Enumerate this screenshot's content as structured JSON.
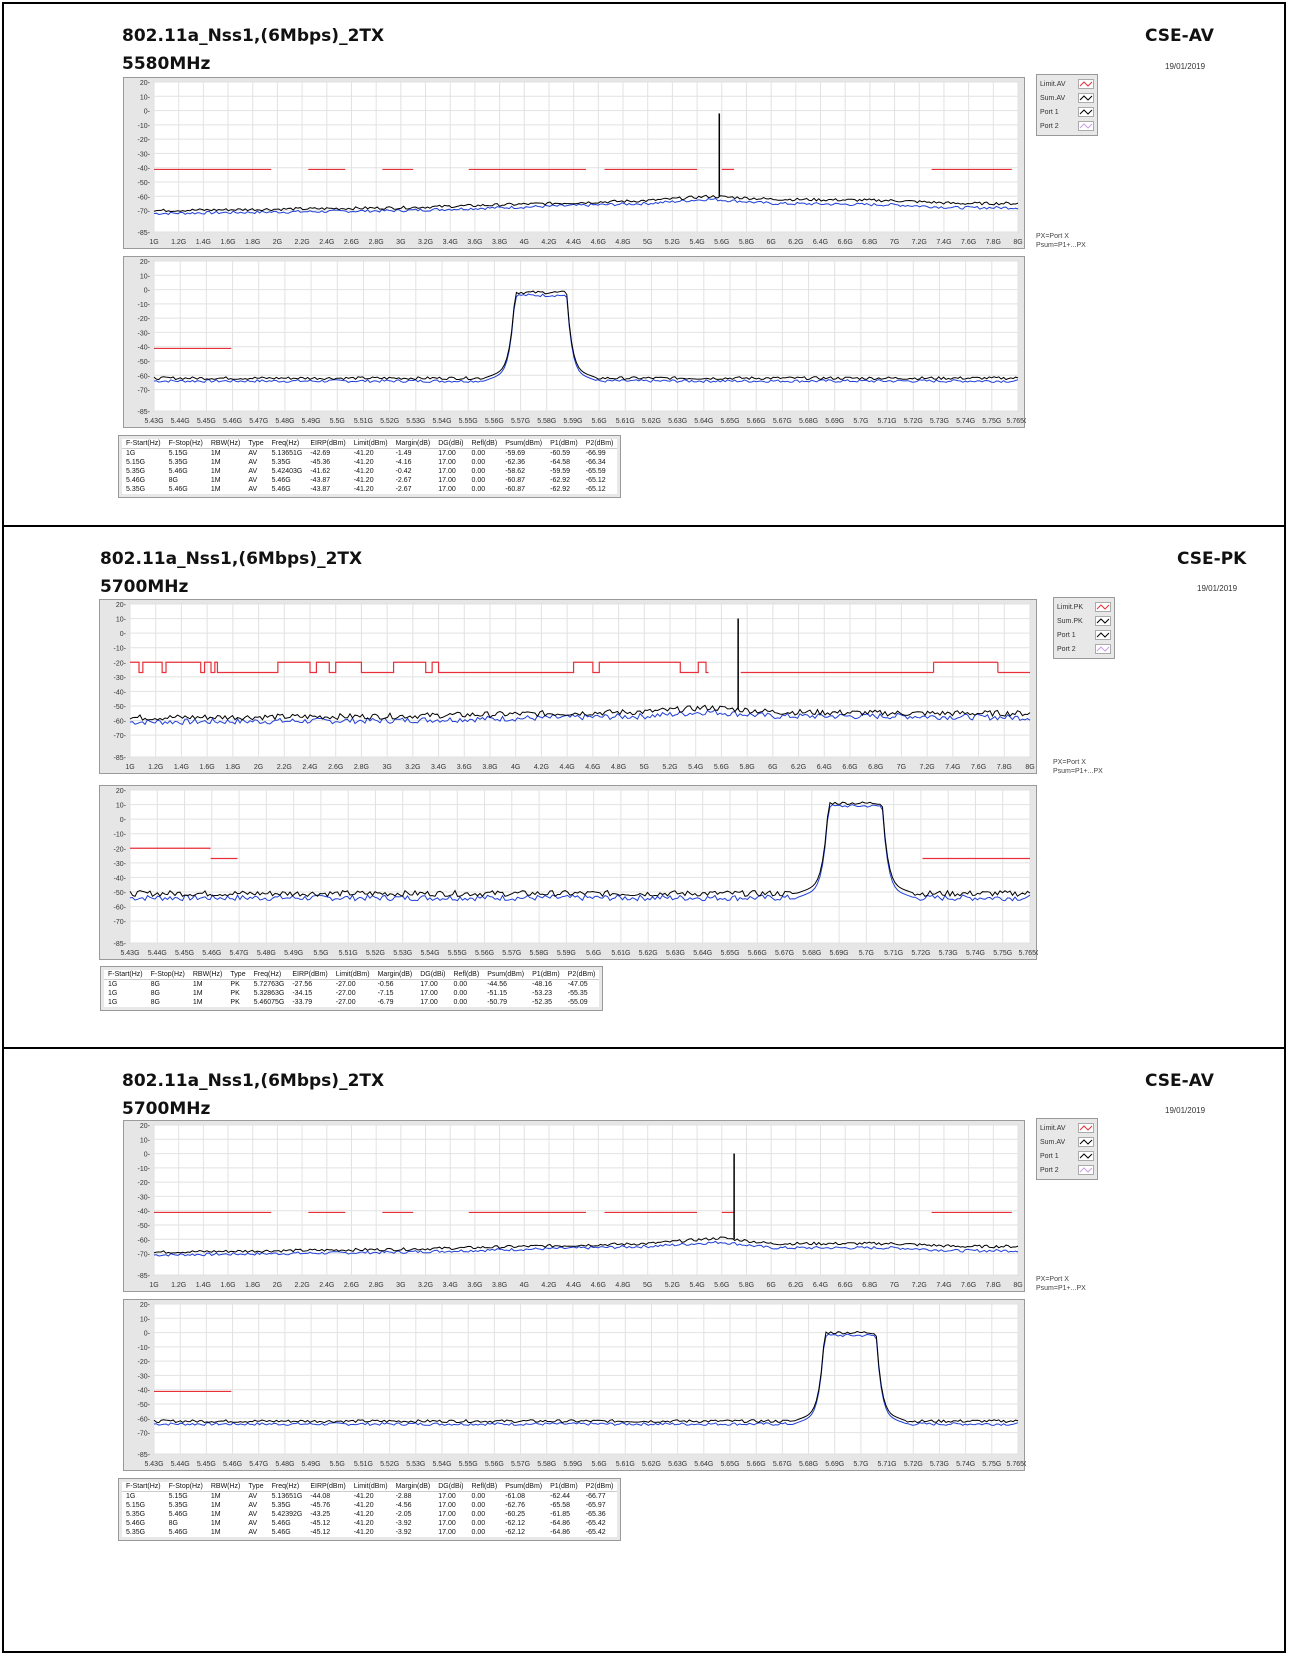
{
  "common": {
    "date": "19/01/2019",
    "px_note_line1": "PX=Port X",
    "px_note_line2": "Psum=P1+...PX",
    "x_ticks_full": [
      "1G",
      "1.2G",
      "1.4G",
      "1.6G",
      "1.8G",
      "2G",
      "2.2G",
      "2.4G",
      "2.6G",
      "2.8G",
      "3G",
      "3.2G",
      "3.4G",
      "3.6G",
      "3.8G",
      "4G",
      "4.2G",
      "4.4G",
      "4.6G",
      "4.8G",
      "5G",
      "5.2G",
      "5.4G",
      "5.6G",
      "5.8G",
      "6G",
      "6.2G",
      "6.4G",
      "6.6G",
      "6.8G",
      "7G",
      "7.2G",
      "7.4G",
      "7.6G",
      "7.8G",
      "8G"
    ],
    "x_ticks_zoom": [
      "5.43G",
      "5.44G",
      "5.45G",
      "5.46G",
      "5.47G",
      "5.48G",
      "5.49G",
      "5.5G",
      "5.51G",
      "5.52G",
      "5.53G",
      "5.54G",
      "5.55G",
      "5.56G",
      "5.57G",
      "5.58G",
      "5.59G",
      "5.6G",
      "5.61G",
      "5.62G",
      "5.63G",
      "5.64G",
      "5.65G",
      "5.66G",
      "5.67G",
      "5.68G",
      "5.69G",
      "5.7G",
      "5.71G",
      "5.72G",
      "5.73G",
      "5.74G",
      "5.75G",
      "5.765G"
    ],
    "y_ticks": [
      "20",
      "10",
      "0",
      "-10",
      "-20",
      "-30",
      "-40",
      "-50",
      "-60",
      "-70",
      "-85"
    ],
    "table_headers": [
      "F-Start(Hz)",
      "F-Stop(Hz)",
      "RBW(Hz)",
      "Type",
      "Freq(Hz)",
      "EIRP(dBm)",
      "Limit(dBm)",
      "Margin(dB)",
      "DG(dBi)",
      "Refl(dB)",
      "Psum(dBm)",
      "P1(dBm)",
      "P2(dBm)"
    ],
    "colors": {
      "limit": "#e8303a",
      "sum": "#000000",
      "port1": "#1f3fd6",
      "port2": "#c8a0e6"
    }
  },
  "sections": [
    {
      "title": "802.11a_Nss1,(6Mbps)_2TX",
      "freq": "5580MHz",
      "mode": "CSE-AV",
      "legend": [
        "Limit.AV",
        "Sum.AV",
        "Port 1",
        "Port 2"
      ],
      "rows": [
        [
          "1G",
          "5.15G",
          "1M",
          "AV",
          "5.13651G",
          "-42.69",
          "-41.20",
          "-1.49",
          "17.00",
          "0.00",
          "-59.69",
          "-60.59",
          "-66.99"
        ],
        [
          "5.15G",
          "5.35G",
          "1M",
          "AV",
          "5.35G",
          "-45.36",
          "-41.20",
          "-4.16",
          "17.00",
          "0.00",
          "-62.36",
          "-64.58",
          "-66.34"
        ],
        [
          "5.35G",
          "5.46G",
          "1M",
          "AV",
          "5.42403G",
          "-41.62",
          "-41.20",
          "-0.42",
          "17.00",
          "0.00",
          "-58.62",
          "-59.59",
          "-65.59"
        ],
        [
          "5.46G",
          "8G",
          "1M",
          "AV",
          "5.46G",
          "-43.87",
          "-41.20",
          "-2.67",
          "17.00",
          "0.00",
          "-60.87",
          "-62.92",
          "-65.12"
        ],
        [
          "5.35G",
          "5.46G",
          "1M",
          "AV",
          "5.46G",
          "-43.87",
          "-41.20",
          "-2.67",
          "17.00",
          "0.00",
          "-60.87",
          "-62.92",
          "-65.12"
        ]
      ]
    },
    {
      "title": "802.11a_Nss1,(6Mbps)_2TX",
      "freq": "5700MHz",
      "mode": "CSE-PK",
      "legend": [
        "Limit.PK",
        "Sum.PK",
        "Port 1",
        "Port 2"
      ],
      "rows": [
        [
          "1G",
          "8G",
          "1M",
          "PK",
          "5.72763G",
          "-27.56",
          "-27.00",
          "-0.56",
          "17.00",
          "0.00",
          "-44.56",
          "-48.16",
          "-47.05"
        ],
        [
          "1G",
          "8G",
          "1M",
          "PK",
          "5.32863G",
          "-34.15",
          "-27.00",
          "-7.15",
          "17.00",
          "0.00",
          "-51.15",
          "-53.23",
          "-55.35"
        ],
        [
          "1G",
          "8G",
          "1M",
          "PK",
          "5.46075G",
          "-33.79",
          "-27.00",
          "-6.79",
          "17.00",
          "0.00",
          "-50.79",
          "-52.35",
          "-55.09"
        ]
      ]
    },
    {
      "title": "802.11a_Nss1,(6Mbps)_2TX",
      "freq": "5700MHz",
      "mode": "CSE-AV",
      "legend": [
        "Limit.AV",
        "Sum.AV",
        "Port 1",
        "Port 2"
      ],
      "rows": [
        [
          "1G",
          "5.15G",
          "1M",
          "AV",
          "5.13651G",
          "-44.08",
          "-41.20",
          "-2.88",
          "17.00",
          "0.00",
          "-61.08",
          "-62.44",
          "-66.77"
        ],
        [
          "5.15G",
          "5.35G",
          "1M",
          "AV",
          "5.35G",
          "-45.76",
          "-41.20",
          "-4.56",
          "17.00",
          "0.00",
          "-62.76",
          "-65.58",
          "-65.97"
        ],
        [
          "5.35G",
          "5.46G",
          "1M",
          "AV",
          "5.42392G",
          "-43.25",
          "-41.20",
          "-2.05",
          "17.00",
          "0.00",
          "-60.25",
          "-61.85",
          "-65.36"
        ],
        [
          "5.46G",
          "8G",
          "1M",
          "AV",
          "5.46G",
          "-45.12",
          "-41.20",
          "-3.92",
          "17.00",
          "0.00",
          "-62.12",
          "-64.86",
          "-65.42"
        ],
        [
          "5.35G",
          "5.46G",
          "1M",
          "AV",
          "5.46G",
          "-45.12",
          "-41.20",
          "-3.92",
          "17.00",
          "0.00",
          "-62.12",
          "-64.86",
          "-65.42"
        ]
      ]
    }
  ],
  "chart_data": [
    {
      "type": "line",
      "panel": "sec1-full",
      "xlim": [
        1,
        8
      ],
      "ylim": [
        -85,
        20
      ],
      "xunit": "GHz",
      "series": [
        {
          "name": "Limit.AV",
          "segments": [
            [
              1.0,
              1.95,
              -41.2
            ],
            [
              2.25,
              2.55,
              -41.2
            ],
            [
              2.85,
              3.1,
              -41.2
            ],
            [
              3.55,
              4.5,
              -41.2
            ],
            [
              4.65,
              5.4,
              -41.2
            ],
            [
              5.6,
              5.7,
              -41.2
            ],
            [
              7.3,
              7.95,
              -41.2
            ]
          ]
        },
        {
          "name": "Sum.AV",
          "peak": {
            "x": 5.58,
            "y": -2
          },
          "floor": [
            [
              1,
              -70
            ],
            [
              3,
              -68
            ],
            [
              5,
              -63
            ],
            [
              5.5,
              -60
            ],
            [
              6,
              -62
            ],
            [
              7,
              -63
            ],
            [
              7.5,
              -65
            ],
            [
              8,
              -65
            ]
          ]
        },
        {
          "name": "Port 1",
          "floor": [
            [
              1,
              -72
            ],
            [
              3,
              -70
            ],
            [
              5,
              -65
            ],
            [
              5.5,
              -62
            ],
            [
              6,
              -65
            ],
            [
              7,
              -66
            ],
            [
              7.5,
              -68
            ],
            [
              8,
              -68
            ]
          ]
        }
      ]
    },
    {
      "type": "line",
      "panel": "sec1-zoom",
      "xlim": [
        5.43,
        5.765
      ],
      "ylim": [
        -85,
        20
      ],
      "xunit": "GHz",
      "series": [
        {
          "name": "Limit.AV",
          "segments": [
            [
              5.43,
              5.46,
              -41.2
            ]
          ]
        },
        {
          "name": "Sum.AV",
          "band": {
            "start": 5.57,
            "stop": 5.59,
            "level": -2
          },
          "floor": -62
        },
        {
          "name": "Port 1",
          "band": {
            "start": 5.57,
            "stop": 5.59,
            "level": -4
          },
          "floor": -64
        }
      ]
    },
    {
      "type": "line",
      "panel": "sec2-full",
      "xlim": [
        1,
        8
      ],
      "ylim": [
        -85,
        20
      ],
      "xunit": "GHz",
      "series": [
        {
          "name": "Limit.PK",
          "steps": [
            [
              1.0,
              -20
            ],
            [
              1.07,
              -27
            ],
            [
              1.1,
              -20
            ],
            [
              1.25,
              -27
            ],
            [
              1.28,
              -20
            ],
            [
              1.55,
              -27
            ],
            [
              1.58,
              -20
            ],
            [
              1.63,
              -27
            ],
            [
              1.66,
              -20
            ],
            [
              1.68,
              -27
            ],
            [
              2.15,
              -20
            ],
            [
              2.4,
              -27
            ],
            [
              2.45,
              -20
            ],
            [
              2.55,
              -27
            ],
            [
              2.6,
              -20
            ],
            [
              2.8,
              -27
            ],
            [
              3.05,
              -20
            ],
            [
              3.3,
              -27
            ],
            [
              3.35,
              -20
            ],
            [
              3.4,
              -27
            ],
            [
              4.45,
              -20
            ],
            [
              4.6,
              -27
            ],
            [
              4.65,
              -20
            ],
            [
              5.28,
              -27
            ],
            [
              5.42,
              -20
            ],
            [
              5.48,
              -27
            ]
          ],
          "right": [
            [
              5.75,
              7.25,
              -27
            ],
            [
              7.25,
              7.75,
              -20
            ],
            [
              7.75,
              8.0,
              -27
            ]
          ]
        },
        {
          "name": "Sum.PK",
          "peak": {
            "x": 5.73,
            "y": 10
          },
          "floor": [
            [
              1,
              -58
            ],
            [
              3,
              -57
            ],
            [
              5,
              -54
            ],
            [
              5.5,
              -51
            ],
            [
              6,
              -54
            ],
            [
              7,
              -55
            ],
            [
              8,
              -55
            ]
          ]
        },
        {
          "name": "Port 1",
          "floor": [
            [
              1,
              -61
            ],
            [
              3,
              -60
            ],
            [
              5,
              -57
            ],
            [
              5.5,
              -54
            ],
            [
              6,
              -57
            ],
            [
              7,
              -57
            ],
            [
              8,
              -58
            ]
          ]
        }
      ]
    },
    {
      "type": "line",
      "panel": "sec2-zoom",
      "xlim": [
        5.43,
        5.765
      ],
      "ylim": [
        -85,
        20
      ],
      "xunit": "GHz",
      "series": [
        {
          "name": "Limit.PK",
          "segments": [
            [
              5.43,
              5.46,
              -20
            ],
            [
              5.46,
              5.47,
              -27
            ],
            [
              5.725,
              5.765,
              -27
            ]
          ]
        },
        {
          "name": "Sum.PK",
          "band": {
            "start": 5.69,
            "stop": 5.71,
            "level": 11
          },
          "floor": -51
        },
        {
          "name": "Port 1",
          "band": {
            "start": 5.69,
            "stop": 5.71,
            "level": 9
          },
          "floor": -54
        }
      ]
    },
    {
      "type": "line",
      "panel": "sec3-full",
      "xlim": [
        1,
        8
      ],
      "ylim": [
        -85,
        20
      ],
      "xunit": "GHz",
      "series": [
        {
          "name": "Limit.AV",
          "segments": [
            [
              1.0,
              1.95,
              -41.2
            ],
            [
              2.25,
              2.55,
              -41.2
            ],
            [
              2.85,
              3.1,
              -41.2
            ],
            [
              3.55,
              4.5,
              -41.2
            ],
            [
              4.65,
              5.4,
              -41.2
            ],
            [
              5.6,
              5.7,
              -41.2
            ],
            [
              7.3,
              7.95,
              -41.2
            ]
          ]
        },
        {
          "name": "Sum.AV",
          "peak": {
            "x": 5.7,
            "y": 0
          },
          "floor": [
            [
              1,
              -69
            ],
            [
              3,
              -67
            ],
            [
              5,
              -63
            ],
            [
              5.6,
              -59
            ],
            [
              6,
              -63
            ],
            [
              7,
              -63
            ],
            [
              7.5,
              -65
            ],
            [
              8,
              -65
            ]
          ]
        },
        {
          "name": "Port 1",
          "floor": [
            [
              1,
              -71
            ],
            [
              3,
              -69
            ],
            [
              5,
              -65
            ],
            [
              5.6,
              -62
            ],
            [
              6,
              -66
            ],
            [
              7,
              -66
            ],
            [
              7.5,
              -68
            ],
            [
              8,
              -68
            ]
          ]
        }
      ]
    },
    {
      "type": "line",
      "panel": "sec3-zoom",
      "xlim": [
        5.43,
        5.765
      ],
      "ylim": [
        -85,
        20
      ],
      "xunit": "GHz",
      "series": [
        {
          "name": "Limit.AV",
          "segments": [
            [
              5.43,
              5.46,
              -41.2
            ]
          ]
        },
        {
          "name": "Sum.AV",
          "band": {
            "start": 5.69,
            "stop": 5.71,
            "level": 0
          },
          "floor": -62
        },
        {
          "name": "Port 1",
          "band": {
            "start": 5.69,
            "stop": 5.71,
            "level": -2
          },
          "floor": -64
        }
      ]
    }
  ]
}
